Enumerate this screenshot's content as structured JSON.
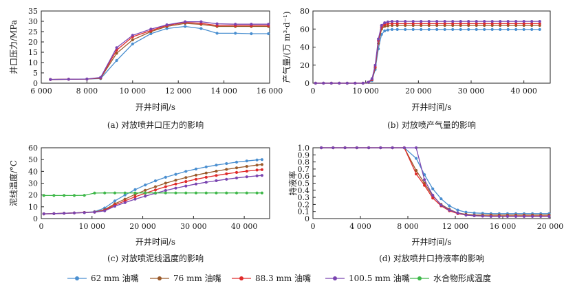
{
  "legend": [
    {
      "name": "62 mm 油嘴",
      "color": "#4a8fd0"
    },
    {
      "name": "76 mm 油嘴",
      "color": "#9a5a2a"
    },
    {
      "name": "88.3 mm 油嘴",
      "color": "#e02a2a"
    },
    {
      "name": "100.5 mm 油嘴",
      "color": "#7a45b0"
    },
    {
      "name": "水合物形成温度",
      "color": "#3fb84a"
    }
  ],
  "chart_data": [
    {
      "type": "line",
      "caption": "(a) 对放喷井口压力的影响",
      "xlabel": "开井时间/s",
      "ylabel": "井口压力/MPa",
      "xlim": [
        6000,
        16000
      ],
      "ylim": [
        0,
        35
      ],
      "xticks": [
        6000,
        8000,
        10000,
        12000,
        14000,
        16000
      ],
      "xtick_labels": [
        "6 000",
        "8 000",
        "10 000",
        "12 000",
        "14 000",
        "16 000"
      ],
      "yticks": [
        0,
        5,
        10,
        15,
        20,
        25,
        30,
        35
      ],
      "ytick_labels": [
        "0",
        "5",
        "10",
        "15",
        "20",
        "25",
        "30",
        "35"
      ],
      "x": [
        6400,
        7200,
        8000,
        8600,
        9300,
        10000,
        10800,
        11500,
        12300,
        13000,
        13700,
        14500,
        15200,
        15950
      ],
      "series": [
        {
          "name": "62 mm 油嘴",
          "values": [
            1.8,
            1.9,
            2.0,
            2.2,
            11.0,
            19.0,
            24.0,
            26.5,
            27.5,
            26.5,
            24.2,
            24.2,
            24.0,
            24.0
          ]
        },
        {
          "name": "76 mm 油嘴",
          "values": [
            1.8,
            1.9,
            2.0,
            2.4,
            14.5,
            21.0,
            25.0,
            27.5,
            29.0,
            28.5,
            27.5,
            27.5,
            27.5,
            27.5
          ]
        },
        {
          "name": "88.3 mm 油嘴",
          "values": [
            1.8,
            1.9,
            2.0,
            2.6,
            16.0,
            22.5,
            25.5,
            28.0,
            29.5,
            29.0,
            28.0,
            28.0,
            28.0,
            28.0
          ]
        },
        {
          "name": "100.5 mm 油嘴",
          "values": [
            1.8,
            1.9,
            2.0,
            2.8,
            17.2,
            23.2,
            26.2,
            28.3,
            29.8,
            29.8,
            28.8,
            28.6,
            28.6,
            28.6
          ]
        }
      ]
    },
    {
      "type": "line",
      "caption": "(b) 对放喷产气量的影响",
      "xlabel": "开井时间/s",
      "ylabel": "产气量/(万 m³·d⁻¹)",
      "xlim": [
        0,
        45000
      ],
      "ylim": [
        0,
        80
      ],
      "xticks": [
        0,
        10000,
        20000,
        30000,
        40000
      ],
      "xtick_labels": [
        "0",
        "10 000",
        "20 000",
        "30 000",
        "40 000"
      ],
      "yticks": [
        0,
        20,
        40,
        60,
        80
      ],
      "ytick_labels": [
        "0",
        "20",
        "40",
        "60",
        "80"
      ],
      "x": [
        500,
        2000,
        3500,
        5000,
        6500,
        8000,
        9500,
        10500,
        11200,
        11800,
        12400,
        13000,
        13600,
        14200,
        15000,
        16000,
        17500,
        19000,
        20500,
        22000,
        23500,
        25000,
        26500,
        28000,
        29500,
        31000,
        32500,
        34000,
        35500,
        37000,
        38500,
        40000,
        41500,
        43000
      ],
      "series": [
        {
          "name": "62 mm 油嘴",
          "values": [
            0,
            0,
            0,
            0,
            0,
            0,
            0,
            1,
            3,
            15,
            38,
            54,
            58,
            59,
            59.5,
            59.5,
            59.5,
            59.5,
            59.5,
            59.5,
            59.5,
            59.5,
            59.5,
            59.5,
            59.5,
            59.5,
            59.5,
            59.5,
            59.5,
            59.5,
            59.5,
            59.5,
            59.5,
            59.5
          ]
        },
        {
          "name": "76 mm 油嘴",
          "values": [
            0,
            0,
            0,
            0,
            0,
            0,
            0,
            1,
            4,
            17,
            44,
            60,
            63,
            63.5,
            64,
            64,
            64,
            64,
            64,
            64,
            64,
            64,
            64,
            64,
            64,
            64,
            64,
            64,
            64,
            64,
            64,
            64,
            64,
            64
          ]
        },
        {
          "name": "88.3 mm 油嘴",
          "values": [
            0,
            0,
            0,
            0,
            0,
            0,
            0,
            1,
            4,
            18,
            47,
            62,
            65,
            66,
            66,
            66,
            66,
            66,
            66,
            66,
            66,
            66,
            66,
            66,
            66,
            66,
            66,
            66,
            66,
            66,
            66,
            66,
            66,
            66
          ]
        },
        {
          "name": "100.5 mm 油嘴",
          "values": [
            0,
            0,
            0,
            0,
            0,
            0,
            0,
            1,
            5,
            20,
            49,
            64,
            67,
            68,
            68.5,
            68.5,
            68.5,
            68.5,
            68.5,
            68.5,
            68.5,
            68.5,
            68.5,
            68.5,
            68.5,
            68.5,
            68.5,
            68.5,
            68.5,
            68.5,
            68.5,
            68.5,
            68.5,
            68.5
          ]
        }
      ]
    },
    {
      "type": "line",
      "caption": "(c) 对放喷泥线温度的影响",
      "xlabel": "开井时间/s",
      "ylabel": "泥线温度/°C",
      "xlim": [
        0,
        45000
      ],
      "ylim": [
        0,
        60
      ],
      "xticks": [
        0,
        10000,
        20000,
        30000,
        40000
      ],
      "xtick_labels": [
        "0",
        "10 000",
        "20 000",
        "30 000",
        "40 000"
      ],
      "yticks": [
        0,
        10,
        20,
        30,
        40,
        50,
        60
      ],
      "ytick_labels": [
        "0",
        "10",
        "20",
        "30",
        "40",
        "50",
        "60"
      ],
      "x": [
        500,
        2500,
        4500,
        6500,
        8500,
        10500,
        12500,
        14500,
        16500,
        18500,
        20500,
        22500,
        24500,
        26500,
        28500,
        30500,
        32500,
        34500,
        36500,
        38500,
        40500,
        42500,
        43500
      ],
      "series": [
        {
          "name": "62 mm 油嘴",
          "values": [
            4,
            4.2,
            4.5,
            4.8,
            5.2,
            5.8,
            9,
            15,
            20,
            24.5,
            28.5,
            32,
            35,
            37.5,
            40,
            42,
            43.8,
            45.3,
            46.6,
            47.8,
            48.8,
            49.7,
            50
          ]
        },
        {
          "name": "76 mm 油嘴",
          "values": [
            4,
            4.2,
            4.5,
            4.8,
            5.2,
            5.6,
            7.5,
            12.5,
            16.5,
            20.5,
            24,
            27,
            30,
            32.5,
            34.8,
            36.8,
            38.6,
            40.2,
            41.7,
            43,
            44.2,
            45.3,
            45.8
          ]
        },
        {
          "name": "88.3 mm 油嘴",
          "values": [
            4,
            4.2,
            4.5,
            4.8,
            5.1,
            5.5,
            7,
            11.5,
            15,
            18.5,
            21.5,
            24.3,
            27,
            29.3,
            31.4,
            33.3,
            35,
            36.5,
            37.9,
            39.1,
            40.2,
            41.1,
            41.5
          ]
        },
        {
          "name": "100.5 mm 油嘴",
          "values": [
            4,
            4.2,
            4.5,
            4.8,
            5.0,
            5.4,
            6.5,
            10.5,
            13.5,
            16.5,
            19,
            21.5,
            23.8,
            25.8,
            27.6,
            29.3,
            30.8,
            32.1,
            33.3,
            34.4,
            35.4,
            36.2,
            36.6
          ]
        },
        {
          "name": "水合物形成温度",
          "values": [
            19.6,
            19.6,
            19.6,
            19.6,
            19.7,
            21.6,
            21.7,
            21.7,
            21.7,
            21.7,
            21.7,
            21.7,
            21.7,
            21.7,
            21.7,
            21.7,
            21.7,
            21.7,
            21.7,
            21.7,
            21.7,
            21.7,
            21.7
          ]
        }
      ]
    },
    {
      "type": "line",
      "caption": "(d) 对放喷井口持液率的影响",
      "xlabel": "开井时间/s",
      "ylabel": "持液率",
      "xlim": [
        0,
        20000
      ],
      "ylim": [
        0,
        1.0
      ],
      "xticks": [
        0,
        4000,
        8000,
        12000,
        16000,
        20000
      ],
      "xtick_labels": [
        "0",
        "4 000",
        "8 000",
        "12 000",
        "16 000",
        "20 000"
      ],
      "yticks": [
        0,
        0.1,
        0.2,
        0.3,
        0.4,
        0.5,
        0.6,
        0.7,
        0.8,
        0.9,
        1.0
      ],
      "ytick_labels": [
        "0",
        "0.1",
        "0.2",
        "0.3",
        "0.4",
        "0.5",
        "0.6",
        "0.7",
        "0.8",
        "0.9",
        "1.0"
      ],
      "x": [
        700,
        1700,
        2700,
        3700,
        4700,
        5700,
        6700,
        7700,
        8700,
        9400,
        10100,
        10800,
        11500,
        12200,
        12900,
        13600,
        14300,
        15000,
        15700,
        16400,
        17100,
        17800,
        18500,
        19200,
        19900
      ],
      "series": [
        {
          "name": "62 mm 油嘴",
          "values": [
            1,
            1,
            1,
            1,
            1,
            1,
            1,
            1,
            0.85,
            0.62,
            0.42,
            0.28,
            0.18,
            0.12,
            0.09,
            0.08,
            0.075,
            0.07,
            0.07,
            0.07,
            0.07,
            0.07,
            0.07,
            0.07,
            0.07
          ]
        },
        {
          "name": "76 mm 油嘴",
          "values": [
            1,
            1,
            1,
            1,
            1,
            1,
            1,
            1,
            0.68,
            0.5,
            0.32,
            0.2,
            0.13,
            0.08,
            0.06,
            0.05,
            0.05,
            0.05,
            0.05,
            0.05,
            0.05,
            0.05,
            0.05,
            0.05,
            0.05
          ]
        },
        {
          "name": "88.3 mm 油嘴",
          "values": [
            1,
            1,
            1,
            1,
            1,
            1,
            1,
            1,
            0.63,
            0.47,
            0.29,
            0.18,
            0.11,
            0.07,
            0.05,
            0.04,
            0.035,
            0.035,
            0.035,
            0.035,
            0.035,
            0.035,
            0.035,
            0.035,
            0.035
          ]
        },
        {
          "name": "100.5 mm 油嘴",
          "values": [
            1,
            1,
            1,
            1,
            1,
            1,
            1,
            1,
            1,
            0.55,
            0.33,
            0.19,
            0.12,
            0.08,
            0.05,
            0.04,
            0.035,
            0.03,
            0.03,
            0.03,
            0.03,
            0.03,
            0.03,
            0.03,
            0.03
          ]
        }
      ]
    }
  ]
}
